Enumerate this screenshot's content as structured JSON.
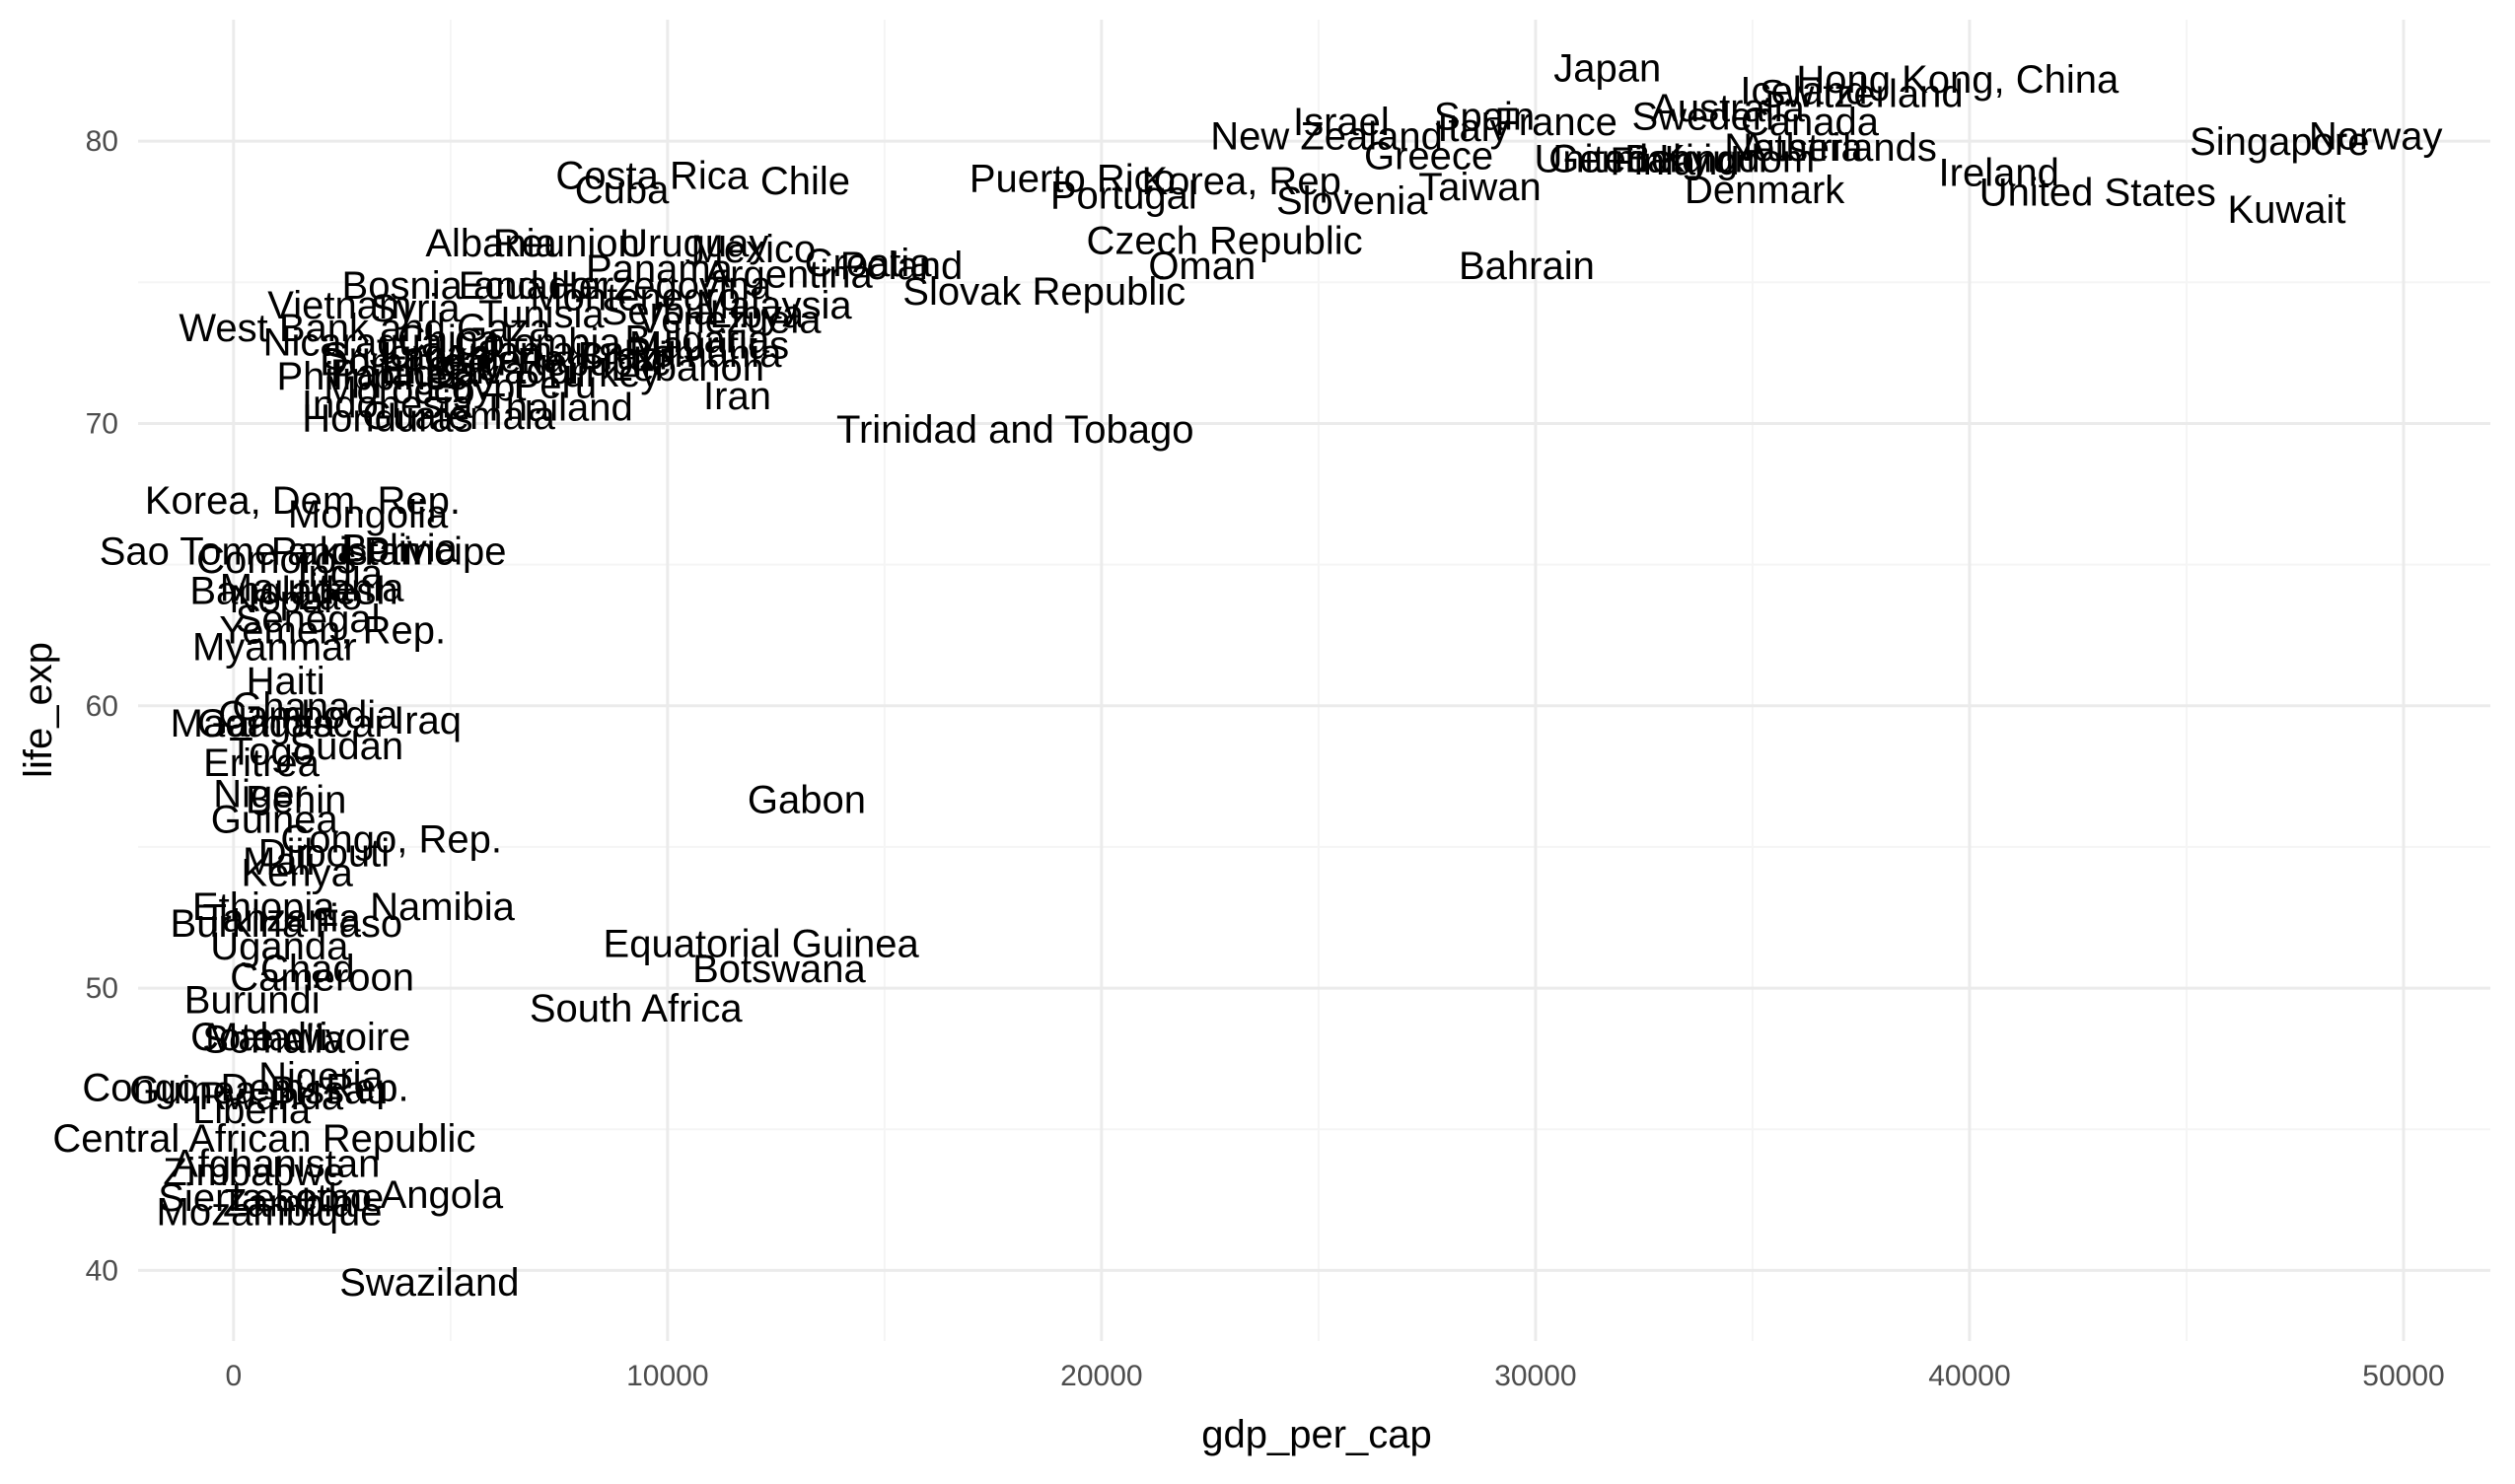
{
  "chart_data": {
    "type": "scatter",
    "geom": "text labels (country names placed at data points)",
    "xlabel": "gdp_per_cap",
    "ylabel": "life_exp",
    "xlim": [
      -2200,
      52000
    ],
    "ylim": [
      37.5,
      84.3
    ],
    "x_ticks": [
      0,
      10000,
      20000,
      30000,
      40000,
      50000
    ],
    "y_ticks": [
      40,
      50,
      60,
      70,
      80
    ],
    "x_tick_labels": [
      "0",
      "10000",
      "20000",
      "30000",
      "40000",
      "50000"
    ],
    "y_tick_labels": [
      "40",
      "50",
      "60",
      "70",
      "80"
    ],
    "grid": true,
    "legend": "none",
    "colors": {
      "background": "#ffffff",
      "grid_major": "#ebebeb",
      "grid_minor": "#f5f5f5",
      "text": "#000000",
      "tick_text": "#4d4d4d"
    },
    "points": [
      {
        "label": "Japan",
        "x": 31656,
        "y": 82.6
      },
      {
        "label": "Hong Kong, China",
        "x": 39725,
        "y": 82.2
      },
      {
        "label": "Switzerland",
        "x": 37506,
        "y": 81.7
      },
      {
        "label": "Iceland",
        "x": 36181,
        "y": 81.8
      },
      {
        "label": "Australia",
        "x": 34435,
        "y": 81.2
      },
      {
        "label": "Sweden",
        "x": 33860,
        "y": 80.9
      },
      {
        "label": "Canada",
        "x": 36319,
        "y": 80.7
      },
      {
        "label": "Israel",
        "x": 25523,
        "y": 80.7
      },
      {
        "label": "Spain",
        "x": 28821,
        "y": 80.9
      },
      {
        "label": "France",
        "x": 30470,
        "y": 80.7
      },
      {
        "label": "Italy",
        "x": 28570,
        "y": 80.5
      },
      {
        "label": "Norway",
        "x": 49357,
        "y": 80.2
      },
      {
        "label": "Singapore",
        "x": 47143,
        "y": 80.0
      },
      {
        "label": "New Zealand",
        "x": 25185,
        "y": 80.2
      },
      {
        "label": "Austria",
        "x": 36126,
        "y": 79.8
      },
      {
        "label": "Netherlands",
        "x": 36798,
        "y": 79.8
      },
      {
        "label": "Germany",
        "x": 32170,
        "y": 79.4
      },
      {
        "label": "Belgium",
        "x": 33693,
        "y": 79.4
      },
      {
        "label": "Finland",
        "x": 33207,
        "y": 79.3
      },
      {
        "label": "United Kingdom",
        "x": 33203,
        "y": 79.4
      },
      {
        "label": "Greece",
        "x": 27538,
        "y": 79.5
      },
      {
        "label": "Ireland",
        "x": 40676,
        "y": 78.9
      },
      {
        "label": "Korea, Rep.",
        "x": 23348,
        "y": 78.6
      },
      {
        "label": "Puerto Rico",
        "x": 19329,
        "y": 78.7
      },
      {
        "label": "Costa Rica",
        "x": 9645,
        "y": 78.8
      },
      {
        "label": "Chile",
        "x": 13172,
        "y": 78.6
      },
      {
        "label": "Cuba",
        "x": 8948,
        "y": 78.3
      },
      {
        "label": "Portugal",
        "x": 20510,
        "y": 78.1
      },
      {
        "label": "Denmark",
        "x": 35278,
        "y": 78.3
      },
      {
        "label": "Taiwan",
        "x": 28718,
        "y": 78.4
      },
      {
        "label": "United States",
        "x": 42952,
        "y": 78.2
      },
      {
        "label": "Slovenia",
        "x": 25768,
        "y": 77.9
      },
      {
        "label": "Kuwait",
        "x": 47307,
        "y": 77.6
      },
      {
        "label": "Czech Republic",
        "x": 22833,
        "y": 76.5
      },
      {
        "label": "Albania",
        "x": 5937,
        "y": 76.4
      },
      {
        "label": "Reunion",
        "x": 7670,
        "y": 76.4
      },
      {
        "label": "Uruguay",
        "x": 10611,
        "y": 76.4
      },
      {
        "label": "Mexico",
        "x": 11978,
        "y": 76.2
      },
      {
        "label": "Croatia",
        "x": 14619,
        "y": 75.7
      },
      {
        "label": "Oman",
        "x": 22316,
        "y": 75.6
      },
      {
        "label": "Bahrain",
        "x": 29796,
        "y": 75.6
      },
      {
        "label": "Panama",
        "x": 9809,
        "y": 75.5
      },
      {
        "label": "Argentina",
        "x": 12779,
        "y": 75.3
      },
      {
        "label": "Poland",
        "x": 15390,
        "y": 75.6
      },
      {
        "label": "Slovak Republic",
        "x": 18678,
        "y": 74.7
      },
      {
        "label": "Bosnia and Herzegovina",
        "x": 7446,
        "y": 74.9
      },
      {
        "label": "Ecuador",
        "x": 6873,
        "y": 74.9
      },
      {
        "label": "Montenegro",
        "x": 9254,
        "y": 74.5
      },
      {
        "label": "Malaysia",
        "x": 12452,
        "y": 74.2
      },
      {
        "label": "Serbia",
        "x": 9787,
        "y": 74.0
      },
      {
        "label": "Vietnam",
        "x": 2442,
        "y": 74.2
      },
      {
        "label": "Syria",
        "x": 4185,
        "y": 74.1
      },
      {
        "label": "Tunisia",
        "x": 7093,
        "y": 73.9
      },
      {
        "label": "Bulgaria",
        "x": 10681,
        "y": 73.0
      },
      {
        "label": "West Bank and Gaza",
        "x": 3026,
        "y": 73.4
      },
      {
        "label": "Lebanon",
        "x": 10461,
        "y": 72.0
      },
      {
        "label": "Nicaragua",
        "x": 2749,
        "y": 72.9
      },
      {
        "label": "Sri Lanka",
        "x": 3970,
        "y": 72.4
      },
      {
        "label": "Libya",
        "x": 12057,
        "y": 73.9
      },
      {
        "label": "Paraguay",
        "x": 4173,
        "y": 71.8
      },
      {
        "label": "Dominican Republic",
        "x": 6025,
        "y": 72.2
      },
      {
        "label": "Jamaica",
        "x": 7321,
        "y": 72.6
      },
      {
        "label": "Romania",
        "x": 10808,
        "y": 72.5
      },
      {
        "label": "Brazil",
        "x": 9066,
        "y": 72.4
      },
      {
        "label": "Colombia",
        "x": 7007,
        "y": 72.9
      },
      {
        "label": "Peru",
        "x": 7409,
        "y": 71.4
      },
      {
        "label": "Venezuela",
        "x": 11416,
        "y": 73.7
      },
      {
        "label": "El Salvador",
        "x": 5728,
        "y": 71.9
      },
      {
        "label": "Jordan",
        "x": 4519,
        "y": 72.5
      },
      {
        "label": "Morocco",
        "x": 3820,
        "y": 71.2
      },
      {
        "label": "Philippines",
        "x": 3190,
        "y": 71.7
      },
      {
        "label": "Egypt",
        "x": 5581,
        "y": 71.3
      },
      {
        "label": "Algeria",
        "x": 6223,
        "y": 72.3
      },
      {
        "label": "Turkey",
        "x": 8458,
        "y": 71.8
      },
      {
        "label": "China",
        "x": 4959,
        "y": 73.0
      },
      {
        "label": "Mauritius",
        "x": 10957,
        "y": 72.8
      },
      {
        "label": "Iran",
        "x": 11606,
        "y": 71.0
      },
      {
        "label": "Thailand",
        "x": 7458,
        "y": 70.6
      },
      {
        "label": "Indonesia",
        "x": 3541,
        "y": 70.7
      },
      {
        "label": "Guatemala",
        "x": 5186,
        "y": 70.3
      },
      {
        "label": "Honduras",
        "x": 3548,
        "y": 70.2
      },
      {
        "label": "Trinidad and Tobago",
        "x": 18009,
        "y": 69.8
      },
      {
        "label": "Korea, Dem. Rep.",
        "x": 1593,
        "y": 67.3
      },
      {
        "label": "Mongolia",
        "x": 3096,
        "y": 66.8
      },
      {
        "label": "Sao Tome and Principe",
        "x": 1598,
        "y": 65.5
      },
      {
        "label": "Pakistan",
        "x": 2606,
        "y": 65.5
      },
      {
        "label": "Bolivia",
        "x": 3822,
        "y": 65.6
      },
      {
        "label": "Comoros",
        "x": 986,
        "y": 65.2
      },
      {
        "label": "India",
        "x": 2452,
        "y": 64.7
      },
      {
        "label": "Nepal",
        "x": 1091,
        "y": 63.8
      },
      {
        "label": "Gambia",
        "x": 753,
        "y": 59.4
      },
      {
        "label": "Bangladesh",
        "x": 1391,
        "y": 64.1
      },
      {
        "label": "Madagascar",
        "x": 1044,
        "y": 59.4
      },
      {
        "label": "Cambodia",
        "x": 1714,
        "y": 59.7
      },
      {
        "label": "Lao",
        "x": 2213,
        "y": 63.9
      },
      {
        "label": "Yemen, Rep.",
        "x": 2281,
        "y": 62.7
      },
      {
        "label": "Senegal",
        "x": 1712,
        "y": 63.1
      },
      {
        "label": "Myanmar",
        "x": 944,
        "y": 62.1
      },
      {
        "label": "Haiti",
        "x": 1202,
        "y": 60.9
      },
      {
        "label": "Ghana",
        "x": 1328,
        "y": 60.0
      },
      {
        "label": "Mauritania",
        "x": 1803,
        "y": 64.2
      },
      {
        "label": "Iraq",
        "x": 4471,
        "y": 59.5
      },
      {
        "label": "Sudan",
        "x": 2602,
        "y": 58.6
      },
      {
        "label": "Togo",
        "x": 882,
        "y": 58.4
      },
      {
        "label": "Eritrea",
        "x": 641,
        "y": 58.0
      },
      {
        "label": "Niger",
        "x": 620,
        "y": 56.9
      },
      {
        "label": "Benin",
        "x": 1441,
        "y": 56.7
      },
      {
        "label": "Gabon",
        "x": 13206,
        "y": 56.7
      },
      {
        "label": "Guinea",
        "x": 943,
        "y": 56.0
      },
      {
        "label": "Congo, Rep.",
        "x": 3633,
        "y": 55.3
      },
      {
        "label": "Djibouti",
        "x": 2082,
        "y": 54.8
      },
      {
        "label": "Mali",
        "x": 1042,
        "y": 54.5
      },
      {
        "label": "Kenya",
        "x": 1463,
        "y": 54.1
      },
      {
        "label": "Ethiopia",
        "x": 691,
        "y": 52.9
      },
      {
        "label": "Namibia",
        "x": 4811,
        "y": 52.9
      },
      {
        "label": "Burkina Faso",
        "x": 1217,
        "y": 52.3
      },
      {
        "label": "Tanzania",
        "x": 1107,
        "y": 52.5
      },
      {
        "label": "Uganda",
        "x": 1056,
        "y": 51.5
      },
      {
        "label": "Equatorial Guinea",
        "x": 12154,
        "y": 51.6
      },
      {
        "label": "Botswana",
        "x": 12570,
        "y": 50.7
      },
      {
        "label": "Chad",
        "x": 1704,
        "y": 50.7
      },
      {
        "label": "Cameroon",
        "x": 2042,
        "y": 50.4
      },
      {
        "label": "Malawi",
        "x": 759,
        "y": 48.3
      },
      {
        "label": "Burundi",
        "x": 430,
        "y": 49.6
      },
      {
        "label": "South Africa",
        "x": 9270,
        "y": 49.3
      },
      {
        "label": "Cote d'Ivoire",
        "x": 1545,
        "y": 48.3
      },
      {
        "label": "Somalia",
        "x": 926,
        "y": 48.2
      },
      {
        "label": "Nigeria",
        "x": 2014,
        "y": 46.9
      },
      {
        "label": "Congo, Dem. Rep.",
        "x": 278,
        "y": 46.5
      },
      {
        "label": "Guinea-Bissau",
        "x": 579,
        "y": 46.4
      },
      {
        "label": "Rwanda",
        "x": 863,
        "y": 46.2
      },
      {
        "label": "Liberia",
        "x": 415,
        "y": 45.7
      },
      {
        "label": "Central African Republic",
        "x": 706,
        "y": 44.7
      },
      {
        "label": "Afghanistan",
        "x": 975,
        "y": 43.8
      },
      {
        "label": "Zimbabwe",
        "x": 470,
        "y": 43.5
      },
      {
        "label": "Angola",
        "x": 4797,
        "y": 42.7
      },
      {
        "label": "Sierra Leone",
        "x": 863,
        "y": 42.6
      },
      {
        "label": "Zambia",
        "x": 1271,
        "y": 42.4
      },
      {
        "label": "Lesotho",
        "x": 1569,
        "y": 42.6
      },
      {
        "label": "Mozambique",
        "x": 824,
        "y": 42.1
      },
      {
        "label": "Swaziland",
        "x": 4513,
        "y": 39.6
      }
    ]
  }
}
